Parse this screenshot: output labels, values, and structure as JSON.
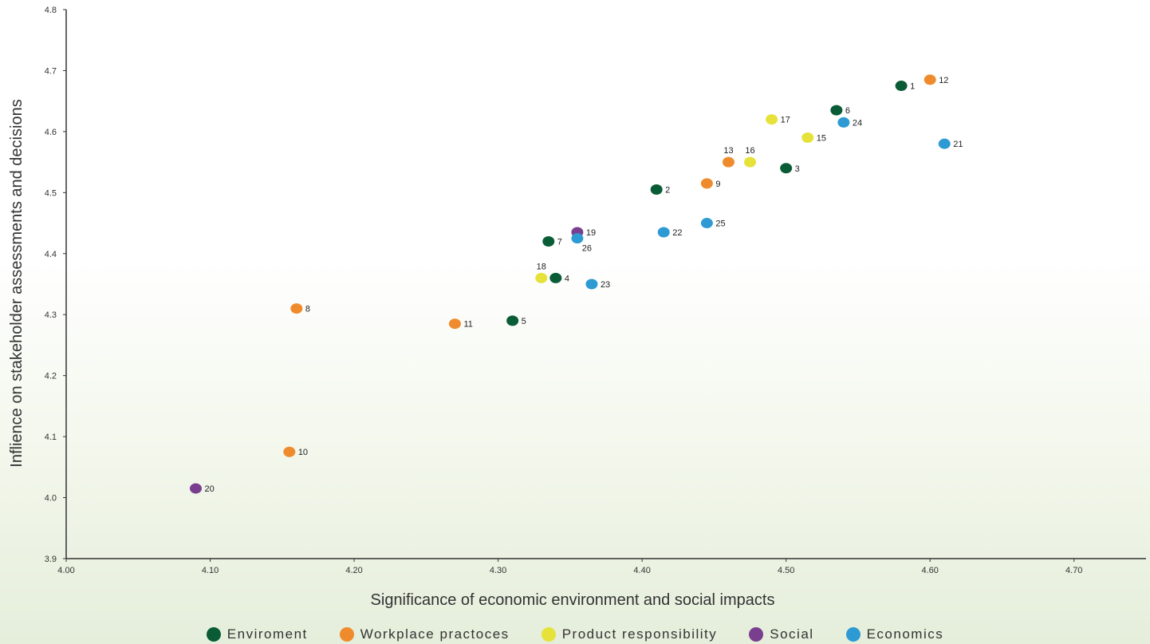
{
  "chart_data": {
    "type": "scatter",
    "title": "",
    "xlabel": "Significance of economic environment and social impacts",
    "ylabel": "Inflience on stakeholder assessments and decisions",
    "xlim": [
      4.0,
      4.75
    ],
    "ylim": [
      3.9,
      4.8
    ],
    "x_ticks": [
      "4.00",
      "4.10",
      "4.20",
      "4.30",
      "4.40",
      "4.50",
      "4.60",
      "4.70"
    ],
    "y_ticks": [
      "3.9",
      "4.0",
      "4.1",
      "4.2",
      "4.3",
      "4.4",
      "4.5",
      "4.6",
      "4.7",
      "4.8"
    ],
    "grid": false,
    "legend_position": "bottom",
    "categories": {
      "env": {
        "name": "Enviroment",
        "color": "#0a5c36"
      },
      "work": {
        "name": "Workplace practoces",
        "color": "#ef8b2c"
      },
      "prod": {
        "name": "Product responsibility",
        "color": "#e6e23a"
      },
      "soc": {
        "name": "Social",
        "color": "#7a3e8e"
      },
      "eco": {
        "name": "Economics",
        "color": "#2e9ad4"
      }
    },
    "legend_order": [
      "env",
      "work",
      "prod",
      "soc",
      "eco"
    ],
    "points": [
      {
        "label": "1",
        "x": 4.58,
        "y": 4.675,
        "cat": "env"
      },
      {
        "label": "2",
        "x": 4.41,
        "y": 4.505,
        "cat": "env"
      },
      {
        "label": "3",
        "x": 4.5,
        "y": 4.54,
        "cat": "env"
      },
      {
        "label": "4",
        "x": 4.34,
        "y": 4.36,
        "cat": "env"
      },
      {
        "label": "5",
        "x": 4.31,
        "y": 4.29,
        "cat": "env"
      },
      {
        "label": "6",
        "x": 4.535,
        "y": 4.635,
        "cat": "env"
      },
      {
        "label": "7",
        "x": 4.335,
        "y": 4.42,
        "cat": "env"
      },
      {
        "label": "8",
        "x": 4.16,
        "y": 4.31,
        "cat": "work"
      },
      {
        "label": "9",
        "x": 4.445,
        "y": 4.515,
        "cat": "work"
      },
      {
        "label": "10",
        "x": 4.155,
        "y": 4.075,
        "cat": "work"
      },
      {
        "label": "11",
        "x": 4.27,
        "y": 4.285,
        "cat": "work"
      },
      {
        "label": "12",
        "x": 4.6,
        "y": 4.685,
        "cat": "work"
      },
      {
        "label": "13",
        "x": 4.46,
        "y": 4.55,
        "cat": "work",
        "above": true
      },
      {
        "label": "15",
        "x": 4.515,
        "y": 4.59,
        "cat": "prod"
      },
      {
        "label": "16",
        "x": 4.475,
        "y": 4.55,
        "cat": "prod",
        "above": true
      },
      {
        "label": "17",
        "x": 4.49,
        "y": 4.62,
        "cat": "prod"
      },
      {
        "label": "18",
        "x": 4.33,
        "y": 4.36,
        "cat": "prod",
        "above": true
      },
      {
        "label": "19",
        "x": 4.355,
        "y": 4.435,
        "cat": "soc"
      },
      {
        "label": "20",
        "x": 4.09,
        "y": 4.015,
        "cat": "soc"
      },
      {
        "label": "21",
        "x": 4.61,
        "y": 4.58,
        "cat": "eco"
      },
      {
        "label": "22",
        "x": 4.415,
        "y": 4.435,
        "cat": "eco"
      },
      {
        "label": "23",
        "x": 4.365,
        "y": 4.35,
        "cat": "eco"
      },
      {
        "label": "24",
        "x": 4.54,
        "y": 4.615,
        "cat": "eco"
      },
      {
        "label": "25",
        "x": 4.445,
        "y": 4.45,
        "cat": "eco"
      },
      {
        "label": "26",
        "x": 4.355,
        "y": 4.425,
        "cat": "eco",
        "below": true
      }
    ]
  }
}
